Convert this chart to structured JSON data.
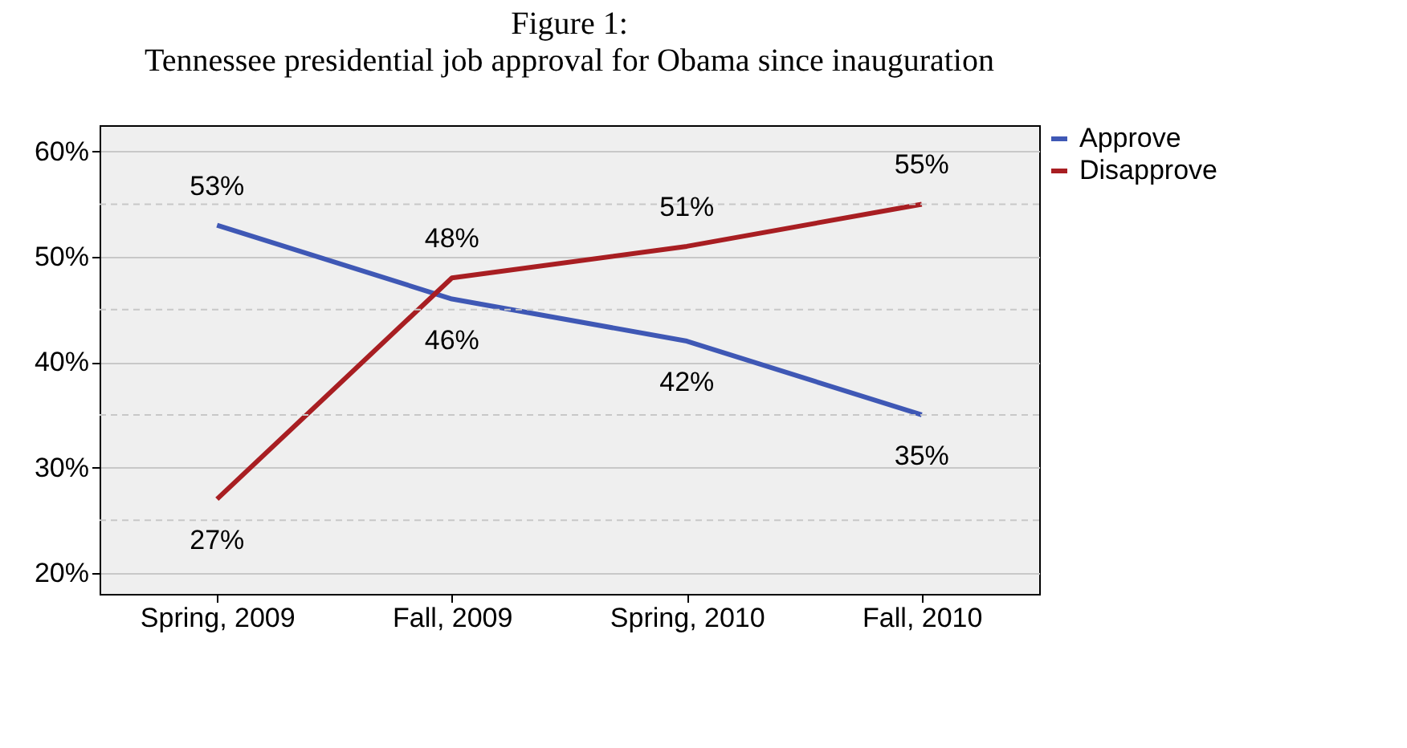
{
  "chart_data": {
    "type": "line",
    "title": "Figure 1:",
    "subtitle": "Tennessee presidential job approval for Obama since inauguration",
    "categories": [
      "Spring, 2009",
      "Fall, 2009",
      "Spring, 2010",
      "Fall, 2010"
    ],
    "series": [
      {
        "name": "Approve",
        "color": "#3f58b5",
        "values": [
          53,
          46,
          42,
          35
        ],
        "value_labels": [
          "53%",
          "46%",
          "42%",
          "35%"
        ]
      },
      {
        "name": "Disapprove",
        "color": "#a81e22",
        "values": [
          27,
          48,
          51,
          55
        ],
        "value_labels": [
          "27%",
          "48%",
          "51%",
          "55%"
        ]
      }
    ],
    "ylim": [
      18,
      62.5
    ],
    "yticks": [
      {
        "value": 20,
        "label": "20%"
      },
      {
        "value": 25,
        "label": null
      },
      {
        "value": 30,
        "label": "30%"
      },
      {
        "value": 35,
        "label": null
      },
      {
        "value": 40,
        "label": "40%"
      },
      {
        "value": 45,
        "label": null
      },
      {
        "value": 50,
        "label": "50%"
      },
      {
        "value": 55,
        "label": null
      },
      {
        "value": 60,
        "label": "60%"
      }
    ],
    "grid": "y",
    "legend": "top right",
    "marker": "none",
    "line_style": "solid"
  }
}
